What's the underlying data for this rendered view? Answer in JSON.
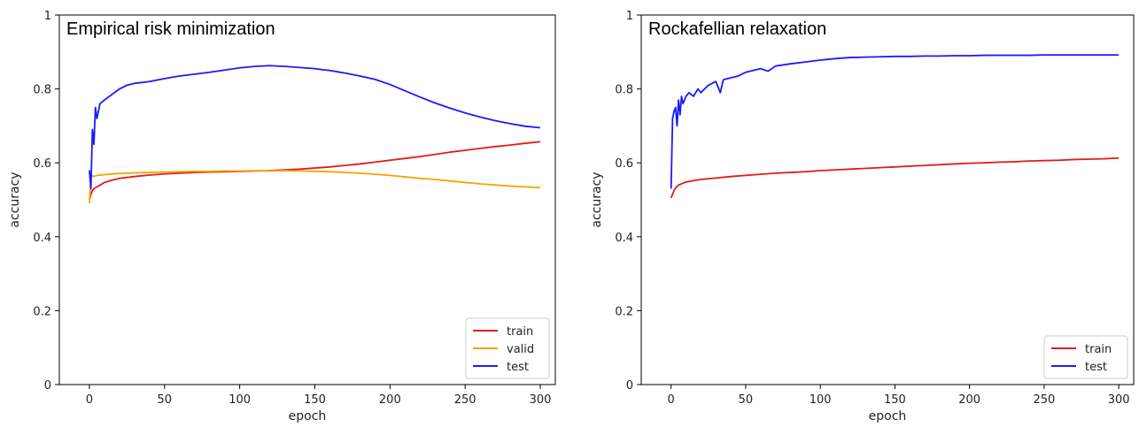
{
  "chart_data": [
    {
      "type": "line",
      "title": "Empirical risk minimization",
      "xlabel": "epoch",
      "ylabel": "accuracy",
      "xlim": [
        -20,
        310
      ],
      "ylim": [
        0.0,
        1.0
      ],
      "xticks": [
        0,
        50,
        100,
        150,
        200,
        250,
        300
      ],
      "yticks": [
        0.0,
        0.2,
        0.4,
        0.6,
        0.8,
        1.0
      ],
      "legend_position": "lower-right",
      "grid": false,
      "series": [
        {
          "name": "train",
          "color": "#e41a1c",
          "x": [
            0,
            1,
            2,
            3,
            5,
            8,
            10,
            15,
            20,
            30,
            40,
            50,
            60,
            70,
            80,
            90,
            100,
            110,
            120,
            130,
            140,
            150,
            160,
            170,
            180,
            190,
            200,
            210,
            220,
            230,
            240,
            250,
            260,
            270,
            280,
            290,
            300
          ],
          "y": [
            0.5,
            0.515,
            0.525,
            0.53,
            0.535,
            0.542,
            0.547,
            0.553,
            0.558,
            0.563,
            0.567,
            0.57,
            0.572,
            0.574,
            0.575,
            0.576,
            0.577,
            0.578,
            0.579,
            0.581,
            0.583,
            0.586,
            0.589,
            0.593,
            0.597,
            0.602,
            0.607,
            0.612,
            0.617,
            0.623,
            0.629,
            0.634,
            0.639,
            0.644,
            0.648,
            0.653,
            0.657
          ]
        },
        {
          "name": "valid",
          "color": "#f5a300",
          "x": [
            0,
            1,
            2,
            3,
            5,
            10,
            15,
            20,
            30,
            40,
            50,
            60,
            70,
            80,
            90,
            100,
            110,
            120,
            130,
            140,
            150,
            160,
            170,
            180,
            190,
            200,
            210,
            220,
            230,
            240,
            250,
            260,
            270,
            280,
            290,
            300
          ],
          "y": [
            0.49,
            0.56,
            0.565,
            0.563,
            0.566,
            0.568,
            0.57,
            0.571,
            0.573,
            0.574,
            0.575,
            0.576,
            0.577,
            0.577,
            0.578,
            0.578,
            0.579,
            0.578,
            0.579,
            0.578,
            0.577,
            0.576,
            0.574,
            0.572,
            0.569,
            0.566,
            0.562,
            0.558,
            0.555,
            0.551,
            0.547,
            0.543,
            0.54,
            0.537,
            0.535,
            0.533
          ]
        },
        {
          "name": "test",
          "color": "#1a1aff",
          "x": [
            0,
            1,
            2,
            3,
            4,
            5,
            7,
            10,
            15,
            20,
            25,
            30,
            40,
            50,
            60,
            70,
            80,
            90,
            100,
            110,
            120,
            130,
            140,
            150,
            155,
            160,
            170,
            180,
            190,
            200,
            210,
            220,
            230,
            240,
            250,
            260,
            270,
            280,
            290,
            300
          ],
          "y": [
            0.58,
            0.53,
            0.69,
            0.65,
            0.75,
            0.72,
            0.76,
            0.77,
            0.785,
            0.8,
            0.81,
            0.815,
            0.82,
            0.828,
            0.835,
            0.84,
            0.845,
            0.851,
            0.857,
            0.861,
            0.863,
            0.861,
            0.858,
            0.855,
            0.852,
            0.85,
            0.843,
            0.835,
            0.826,
            0.812,
            0.795,
            0.778,
            0.762,
            0.748,
            0.735,
            0.724,
            0.714,
            0.706,
            0.699,
            0.695
          ]
        }
      ]
    },
    {
      "type": "line",
      "title": "Rockafellian relaxation",
      "xlabel": "epoch",
      "ylabel": "accuracy",
      "xlim": [
        -20,
        310
      ],
      "ylim": [
        0.0,
        1.0
      ],
      "xticks": [
        0,
        50,
        100,
        150,
        200,
        250,
        300
      ],
      "yticks": [
        0.0,
        0.2,
        0.4,
        0.6,
        0.8,
        1.0
      ],
      "legend_position": "lower-right",
      "grid": false,
      "series": [
        {
          "name": "train",
          "color": "#e41a1c",
          "x": [
            0,
            1,
            2,
            3,
            5,
            8,
            10,
            15,
            20,
            30,
            40,
            50,
            60,
            70,
            80,
            90,
            100,
            110,
            120,
            130,
            140,
            150,
            160,
            170,
            180,
            190,
            200,
            210,
            220,
            230,
            240,
            250,
            260,
            270,
            280,
            290,
            300
          ],
          "y": [
            0.505,
            0.515,
            0.525,
            0.532,
            0.54,
            0.545,
            0.548,
            0.552,
            0.555,
            0.559,
            0.563,
            0.566,
            0.569,
            0.572,
            0.574,
            0.576,
            0.579,
            0.581,
            0.583,
            0.585,
            0.587,
            0.589,
            0.591,
            0.593,
            0.595,
            0.597,
            0.599,
            0.6,
            0.602,
            0.603,
            0.605,
            0.606,
            0.607,
            0.609,
            0.61,
            0.611,
            0.613
          ]
        },
        {
          "name": "test",
          "color": "#1a1aff",
          "x": [
            0,
            1,
            2,
            3,
            4,
            5,
            6,
            7,
            8,
            10,
            12,
            15,
            18,
            20,
            25,
            30,
            33,
            35,
            40,
            45,
            50,
            60,
            65,
            70,
            80,
            90,
            100,
            110,
            120,
            130,
            140,
            150,
            160,
            170,
            180,
            190,
            200,
            210,
            220,
            230,
            240,
            250,
            260,
            270,
            280,
            290,
            300
          ],
          "y": [
            0.53,
            0.72,
            0.74,
            0.75,
            0.7,
            0.77,
            0.73,
            0.78,
            0.76,
            0.78,
            0.79,
            0.78,
            0.8,
            0.79,
            0.81,
            0.82,
            0.79,
            0.825,
            0.83,
            0.835,
            0.845,
            0.855,
            0.848,
            0.862,
            0.868,
            0.873,
            0.878,
            0.882,
            0.885,
            0.886,
            0.887,
            0.888,
            0.888,
            0.889,
            0.889,
            0.89,
            0.89,
            0.891,
            0.891,
            0.891,
            0.891,
            0.892,
            0.892,
            0.892,
            0.892,
            0.892,
            0.892
          ]
        }
      ]
    }
  ]
}
